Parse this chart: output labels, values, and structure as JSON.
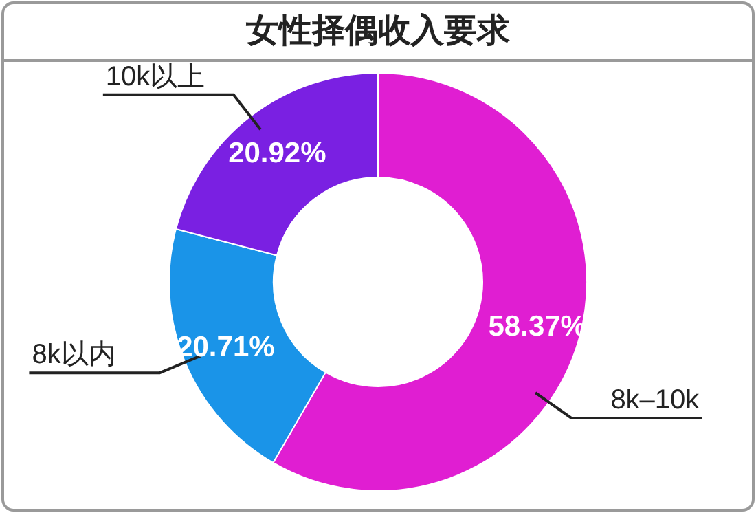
{
  "chart_data": {
    "type": "donut",
    "title": "女性择偶收入要求",
    "categories": [
      "8k–10k",
      "8k以内",
      "10k以上"
    ],
    "values": [
      58.37,
      20.71,
      20.92
    ],
    "value_labels": [
      "58.37%",
      "20.71%",
      "20.92%"
    ],
    "colors": [
      "#e01ed2",
      "#1a94e8",
      "#7a20e2"
    ]
  }
}
